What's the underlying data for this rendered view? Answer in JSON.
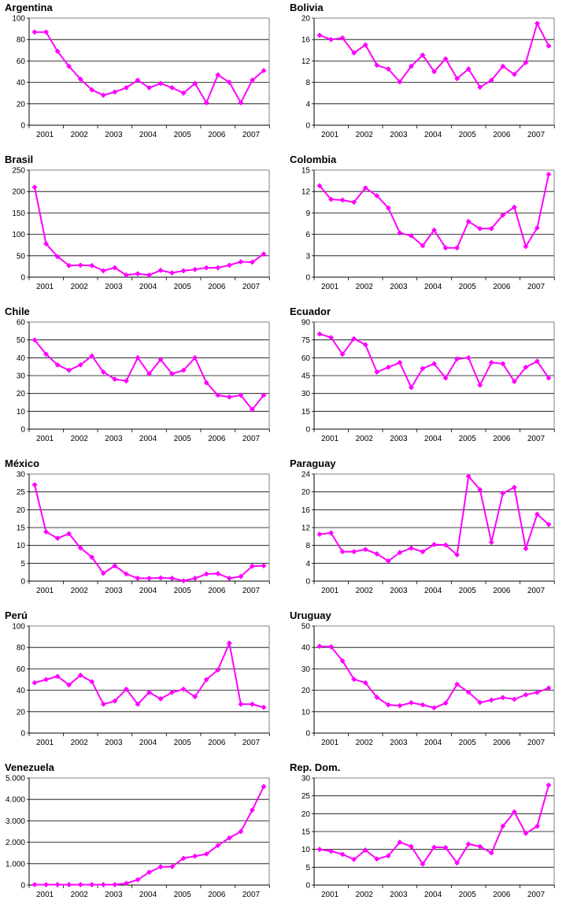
{
  "colors": {
    "series": "#ff00ff",
    "plot_border": "#808080",
    "gridline": "#000000",
    "background": "#ffffff"
  },
  "chart_data": [
    {
      "type": "line",
      "title": "Argentina",
      "years": [
        "2001",
        "2002",
        "2003",
        "2004",
        "2005",
        "2006",
        "2007"
      ],
      "ylim": [
        0,
        100
      ],
      "ytick_values": [
        0,
        20,
        40,
        60,
        80,
        100
      ],
      "ytick_labels": [
        "0",
        "20",
        "40",
        "60",
        "80",
        "100"
      ],
      "values": [
        87,
        87,
        69,
        55,
        43,
        33,
        28,
        31,
        35,
        42,
        35,
        39,
        35,
        30,
        39,
        21,
        47,
        40,
        21,
        42,
        51
      ]
    },
    {
      "type": "line",
      "title": "Bolivia",
      "years": [
        "2001",
        "2002",
        "2003",
        "2004",
        "2005",
        "2006",
        "2007"
      ],
      "ylim": [
        0,
        20
      ],
      "ytick_values": [
        0,
        4,
        8,
        12,
        16,
        20
      ],
      "ytick_labels": [
        "0",
        "4",
        "8",
        "12",
        "16",
        "20"
      ],
      "values": [
        16.8,
        16,
        16.3,
        13.5,
        15,
        11.2,
        10.5,
        8.1,
        11,
        13.1,
        10,
        12.4,
        8.7,
        10.5,
        7.1,
        8.4,
        11,
        9.5,
        11.7,
        19,
        14.8
      ]
    },
    {
      "type": "line",
      "title": "Brasil",
      "years": [
        "2001",
        "2002",
        "2003",
        "2004",
        "2005",
        "2006",
        "2007"
      ],
      "ylim": [
        0,
        250
      ],
      "ytick_values": [
        0,
        50,
        100,
        150,
        200,
        250
      ],
      "ytick_labels": [
        "0",
        "50",
        "100",
        "150",
        "200",
        "250"
      ],
      "values": [
        210,
        78,
        48,
        27,
        28,
        27,
        15,
        22,
        5,
        8,
        5,
        16,
        10,
        15,
        18,
        22,
        22,
        28,
        36,
        35,
        54
      ]
    },
    {
      "type": "line",
      "title": "Colombia",
      "years": [
        "2001",
        "2002",
        "2003",
        "2004",
        "2005",
        "2006",
        "2007"
      ],
      "ylim": [
        0,
        15
      ],
      "ytick_values": [
        0,
        3,
        6,
        9,
        12,
        15
      ],
      "ytick_labels": [
        "0",
        "3",
        "6",
        "9",
        "12",
        "15"
      ],
      "values": [
        12.8,
        10.9,
        10.8,
        10.5,
        12.5,
        11.4,
        9.7,
        6.2,
        5.8,
        4.4,
        6.6,
        4.1,
        4.1,
        7.8,
        6.8,
        6.8,
        8.7,
        9.8,
        4.3,
        6.9,
        14.4
      ]
    },
    {
      "type": "line",
      "title": "Chile",
      "years": [
        "2001",
        "2002",
        "2003",
        "2004",
        "2005",
        "2006",
        "2007"
      ],
      "ylim": [
        0,
        60
      ],
      "ytick_values": [
        0,
        10,
        20,
        30,
        40,
        50,
        60
      ],
      "ytick_labels": [
        "0",
        "10",
        "20",
        "30",
        "40",
        "50",
        "60"
      ],
      "values": [
        50,
        42,
        36,
        33,
        36,
        41,
        32,
        28,
        27,
        40,
        31,
        39,
        31,
        33,
        40,
        26,
        19,
        18,
        19,
        11,
        19
      ]
    },
    {
      "type": "line",
      "title": "Ecuador",
      "years": [
        "2001",
        "2002",
        "2003",
        "2004",
        "2005",
        "2006",
        "2007"
      ],
      "ylim": [
        0,
        90
      ],
      "ytick_values": [
        0,
        15,
        30,
        45,
        60,
        75,
        90
      ],
      "ytick_labels": [
        "0",
        "15",
        "30",
        "45",
        "60",
        "75",
        "90"
      ],
      "values": [
        80,
        77,
        63,
        76,
        71,
        48,
        52,
        56,
        35,
        51,
        55,
        43,
        59,
        60,
        37,
        56,
        55,
        40,
        52,
        57,
        43
      ]
    },
    {
      "type": "line",
      "title": "México",
      "years": [
        "2001",
        "2002",
        "2003",
        "2004",
        "2005",
        "2006",
        "2007"
      ],
      "ylim": [
        0,
        30
      ],
      "ytick_values": [
        0,
        5,
        10,
        15,
        20,
        25,
        30
      ],
      "ytick_labels": [
        "0",
        "5",
        "10",
        "15",
        "20",
        "25",
        "30"
      ],
      "values": [
        27,
        13.8,
        12,
        13.3,
        9.3,
        6.7,
        2.2,
        4.3,
        2,
        0.8,
        0.8,
        0.9,
        0.8,
        0.1,
        0.8,
        2,
        2.1,
        0.8,
        1.3,
        4.2,
        4.3
      ]
    },
    {
      "type": "line",
      "title": "Paraguay",
      "years": [
        "2001",
        "2002",
        "2003",
        "2004",
        "2005",
        "2006",
        "2007"
      ],
      "ylim": [
        0,
        24
      ],
      "ytick_values": [
        0,
        4,
        8,
        12,
        16,
        20,
        24
      ],
      "ytick_labels": [
        "0",
        "4",
        "8",
        "12",
        "16",
        "20",
        "24"
      ],
      "values": [
        10.5,
        10.8,
        6.6,
        6.6,
        7.1,
        6.1,
        4.5,
        6.4,
        7.4,
        6.6,
        8.2,
        8.1,
        5.9,
        23.5,
        20.5,
        8.7,
        19.7,
        21,
        7.3,
        15,
        12.7
      ]
    },
    {
      "type": "line",
      "title": "Perú",
      "years": [
        "2001",
        "2002",
        "2003",
        "2004",
        "2005",
        "2006",
        "2007"
      ],
      "ylim": [
        0,
        100
      ],
      "ytick_values": [
        0,
        20,
        40,
        60,
        80,
        100
      ],
      "ytick_labels": [
        "0",
        "20",
        "40",
        "60",
        "80",
        "100"
      ],
      "values": [
        47,
        50,
        53,
        45,
        54,
        48,
        27,
        30,
        41,
        27,
        38,
        32,
        38,
        41,
        34,
        50,
        59,
        84,
        27,
        27,
        24
      ]
    },
    {
      "type": "line",
      "title": "Uruguay",
      "years": [
        "2001",
        "2002",
        "2003",
        "2004",
        "2005",
        "2006",
        "2007"
      ],
      "ylim": [
        0,
        50
      ],
      "ytick_values": [
        0,
        10,
        20,
        30,
        40,
        50
      ],
      "ytick_labels": [
        "0",
        "10",
        "20",
        "30",
        "40",
        "50"
      ],
      "values": [
        40.5,
        40.3,
        33.7,
        25.1,
        23.5,
        16.7,
        13.2,
        12.8,
        14.2,
        13.2,
        11.8,
        14,
        22.8,
        19.1,
        14.3,
        15.4,
        16.6,
        15.8,
        17.9,
        19,
        21
      ]
    },
    {
      "type": "line",
      "title": "Venezuela",
      "years": [
        "2001",
        "2002",
        "2003",
        "2004",
        "2005",
        "2006",
        "2007"
      ],
      "ylim": [
        0,
        5000
      ],
      "ytick_values": [
        0,
        1000,
        2000,
        3000,
        4000,
        5000
      ],
      "ytick_labels": [
        "0",
        "1.000",
        "2.000",
        "3.000",
        "4.000",
        "5.000"
      ],
      "values": [
        20,
        20,
        20,
        20,
        20,
        20,
        20,
        20,
        80,
        250,
        600,
        850,
        860,
        1250,
        1350,
        1450,
        1850,
        2200,
        2500,
        3500,
        4600
      ]
    },
    {
      "type": "line",
      "title": "Rep. Dom.",
      "years": [
        "2001",
        "2002",
        "2003",
        "2004",
        "2005",
        "2006",
        "2007"
      ],
      "ylim": [
        0,
        30
      ],
      "ytick_values": [
        0,
        5,
        10,
        15,
        20,
        25,
        30
      ],
      "ytick_labels": [
        "0",
        "5",
        "10",
        "15",
        "20",
        "25",
        "30"
      ],
      "values": [
        10,
        9.5,
        8.6,
        7.2,
        9.8,
        7.3,
        8.2,
        12,
        10.8,
        5.9,
        10.6,
        10.5,
        6.2,
        11.5,
        10.8,
        9,
        16.5,
        20.5,
        14.5,
        16.5,
        28
      ]
    }
  ]
}
